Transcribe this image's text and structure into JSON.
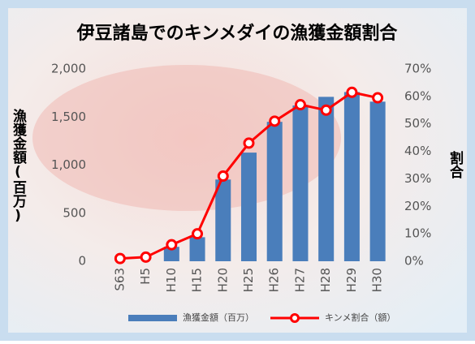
{
  "chart_data": {
    "type": "bar-line",
    "title": "伊豆諸島でのキンメダイの漁獲金額割合",
    "y_label": "漁獲金額(百万)",
    "y2_label": "割合",
    "categories": [
      "S63",
      "H5",
      "H10",
      "H15",
      "H20",
      "H25",
      "H26",
      "H27",
      "H28",
      "H29",
      "H30"
    ],
    "series": [
      {
        "name": "漁獲金額（百万）",
        "type": "bar",
        "color": "#4a7ebb",
        "values": [
          0,
          0,
          150,
          250,
          850,
          1130,
          1450,
          1620,
          1710,
          1760,
          1660
        ]
      },
      {
        "name": "キンメ割合（額）",
        "type": "line",
        "axis": "y2",
        "color": "#ff0000",
        "values": [
          1,
          1.5,
          6,
          10,
          31,
          43,
          51,
          57,
          55,
          61.5,
          59.5
        ]
      }
    ],
    "ylim": [
      0,
      2000
    ],
    "yticks": [
      0,
      500,
      {
        "value": 1000,
        "label": "1,000"
      },
      {
        "value": 1500,
        "label": "1,500"
      },
      {
        "value": 2000,
        "label": "2,000"
      }
    ],
    "y2lim": [
      0,
      70
    ],
    "y2ticks": [
      {
        "value": 0,
        "label": "0%"
      },
      {
        "value": 10,
        "label": "10%"
      },
      {
        "value": 20,
        "label": "20%"
      },
      {
        "value": 30,
        "label": "30%"
      },
      {
        "value": 40,
        "label": "40%"
      },
      {
        "value": 50,
        "label": "50%"
      },
      {
        "value": 60,
        "label": "60%"
      },
      {
        "value": 70,
        "label": "70%"
      }
    ],
    "grid": false,
    "legend": "bottom"
  }
}
